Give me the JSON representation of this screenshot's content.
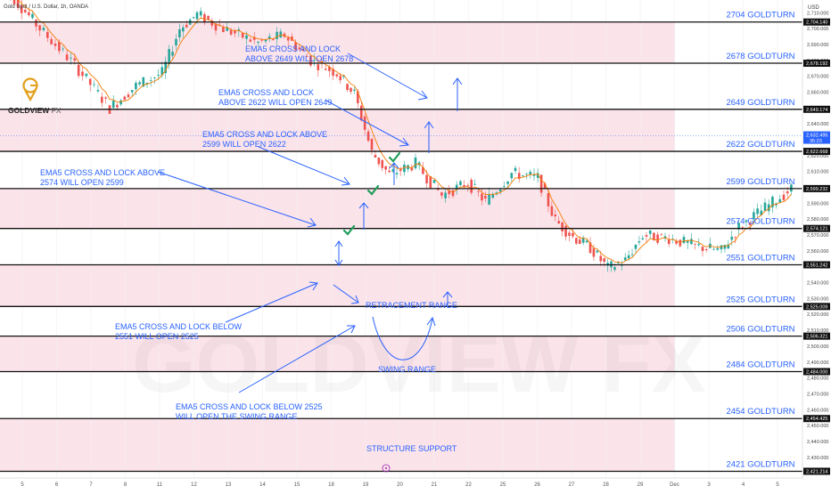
{
  "header": {
    "symbol": "Gold Spot / U.S. Dollar, 1h, OANDA",
    "currency": "USD"
  },
  "brand": {
    "name": "GOLDVIEW",
    "suffix": "FX",
    "watermark": "GOLDVIEW FX",
    "logo_color": "#e2a01c"
  },
  "colors": {
    "level_line": "#111111",
    "zone": "#fbe3ea",
    "annotation": "#2962ff",
    "candle_up": "#26a69a",
    "candle_down": "#ef5350",
    "ema": "#f57c00",
    "check": "#1e9e5a"
  },
  "chart_data": {
    "type": "candlestick",
    "symbol": "Gold Spot / U.S. Dollar",
    "timeframe": "1h",
    "broker": "OANDA",
    "y_unit": "USD",
    "ylim": [
      2417,
      2718
    ],
    "y_ticks": [
      "2,710.000",
      "2,700.000",
      "2,690.000",
      "2,680.000",
      "2,670.000",
      "2,660.000",
      "2,650.000",
      "2,640.000",
      "2,630.000",
      "2,620.000",
      "2,610.000",
      "2,600.000",
      "2,590.000",
      "2,580.000",
      "2,570.000",
      "2,560.000",
      "2,550.000",
      "2,540.000",
      "2,530.000",
      "2,520.000",
      "2,510.000",
      "2,500.000",
      "2,490.000",
      "2,480.000",
      "2,470.000",
      "2,460.000",
      "2,450.000",
      "2,440.000",
      "2,430.000"
    ],
    "x_ticks": [
      "5",
      "6",
      "7",
      "8",
      "11",
      "12",
      "13",
      "14",
      "15",
      "18",
      "19",
      "20",
      "21",
      "22",
      "25",
      "26",
      "27",
      "28",
      "29",
      "Dec",
      "3",
      "4",
      "5"
    ],
    "levels": [
      {
        "label": "2704 GOLDTURN",
        "price": 2704.14,
        "price_label": "2,704.140"
      },
      {
        "label": "2678 GOLDTURN",
        "price": 2678.192,
        "price_label": "2,678.192"
      },
      {
        "label": "2649 GOLDTURN",
        "price": 2649.174,
        "price_label": "2,649.174"
      },
      {
        "label": "2622 GOLDTURN",
        "price": 2622.668,
        "price_label": "2,622.668"
      },
      {
        "label": "2599 GOLDTURN",
        "price": 2599.232,
        "price_label": "2,599.232"
      },
      {
        "label": "2574 GOLDTURN",
        "price": 2574.121,
        "price_label": "2,574.121"
      },
      {
        "label": "2551 GOLDTURN",
        "price": 2551.242,
        "price_label": "2,551.242"
      },
      {
        "label": "2525 GOLDTURN",
        "price": 2525.009,
        "price_label": "2,525.009"
      },
      {
        "label": "2506 GOLDTURN",
        "price": 2506.321,
        "price_label": "2,506.321"
      },
      {
        "label": "2484 GOLDTURN",
        "price": 2484.0,
        "price_label": "2,484.000"
      },
      {
        "label": "2454 GOLDTURN",
        "price": 2454.425,
        "price_label": "2,454.425"
      },
      {
        "label": "2421 GOLDTURN",
        "price": 2421.214,
        "price_label": "2,421.214"
      }
    ],
    "current_price": {
      "price": 2632.495,
      "label": "2,632.495",
      "countdown": "35:23"
    },
    "zones": [
      [
        2678.192,
        2704.14
      ],
      [
        2622.668,
        2649.174
      ],
      [
        2574.121,
        2599.232
      ],
      [
        2525.009,
        2551.242
      ],
      [
        2484.0,
        2506.321
      ],
      [
        2421.214,
        2454.425
      ]
    ],
    "price_path": [
      [
        -3,
        2732
      ],
      [
        2,
        2700
      ],
      [
        6,
        2677
      ],
      [
        10,
        2650
      ],
      [
        13,
        2664
      ],
      [
        16,
        2672
      ],
      [
        18,
        2700
      ],
      [
        20,
        2709
      ],
      [
        23,
        2700
      ],
      [
        27,
        2691
      ],
      [
        30,
        2696
      ],
      [
        33,
        2680
      ],
      [
        36,
        2672
      ],
      [
        38,
        2659
      ],
      [
        40,
        2622
      ],
      [
        42,
        2608
      ],
      [
        45,
        2615
      ],
      [
        48,
        2595
      ],
      [
        51,
        2603
      ],
      [
        53,
        2591
      ],
      [
        56,
        2609
      ],
      [
        59,
        2606
      ],
      [
        61,
        2579
      ],
      [
        63,
        2569
      ],
      [
        65,
        2562
      ],
      [
        67,
        2549
      ],
      [
        69,
        2554
      ],
      [
        71,
        2570
      ],
      [
        74,
        2568
      ],
      [
        77,
        2563
      ],
      [
        80,
        2560
      ],
      [
        82,
        2575
      ],
      [
        85,
        2587
      ],
      [
        88,
        2599
      ],
      [
        90,
        2608
      ],
      [
        92,
        2615
      ],
      [
        94,
        2625
      ],
      [
        96,
        2629
      ],
      [
        97,
        2623
      ]
    ]
  },
  "annotations": {
    "n1": [
      "EMA5 CROSS AND LOCK",
      "ABOVE 2649 WILL OEN 2678"
    ],
    "n2": [
      "EMA5 CROSS AND LOCK",
      "ABOVE 2622 WILL OPEN 2649"
    ],
    "n3": [
      "EMA5 CROSS AND LOCK ABOVE",
      "2599 WILL OPEN 2622"
    ],
    "n4": [
      "EMA5 CROSS AND LOCK ABOVE",
      "2574 WILL OPEN 2599"
    ],
    "n5": [
      "EMA5 CROSS AND LOCK BELOW",
      "2551 WILL OPEN 2525"
    ],
    "n6": [
      "EMA5 CROSS AND LOCK BELOW 2525",
      "WILL OPEN THE SWING RANGE"
    ],
    "retracement": "RETRACEMENT RANGE",
    "swing": "SWING RANGE",
    "structure": "STRUCTURE SUPPORT"
  }
}
